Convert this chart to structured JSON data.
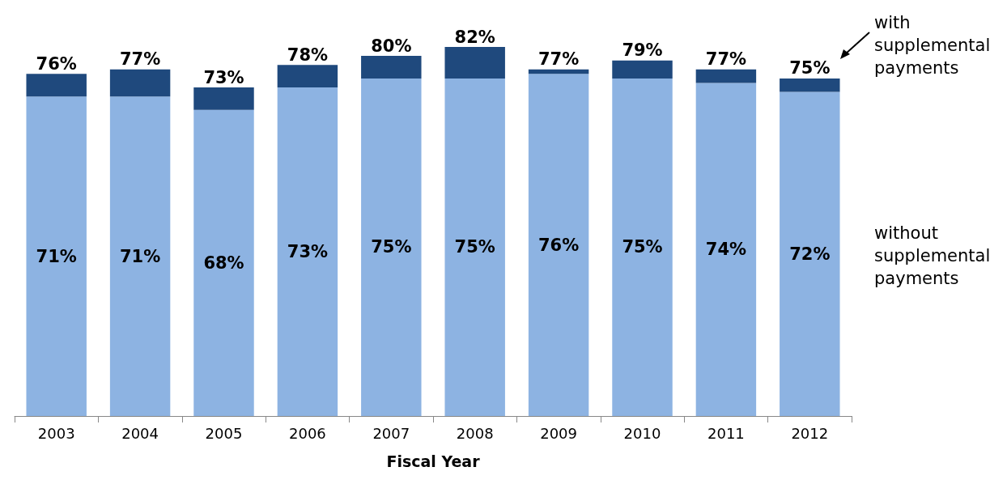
{
  "chart_data": {
    "type": "bar",
    "xlabel": "Fiscal Year",
    "stacked": true,
    "categories": [
      "2003",
      "2004",
      "2005",
      "2006",
      "2007",
      "2008",
      "2009",
      "2010",
      "2011",
      "2012"
    ],
    "series": [
      {
        "name": "without supplemental payments",
        "color": "#8db3e2",
        "values": [
          71,
          71,
          68,
          73,
          75,
          75,
          76,
          75,
          74,
          72
        ],
        "value_labels": [
          "71%",
          "71%",
          "68%",
          "73%",
          "75%",
          "75%",
          "76%",
          "75%",
          "74%",
          "72%"
        ]
      },
      {
        "name": "with supplemental payments",
        "color": "#1f497d",
        "values": [
          5,
          6,
          5,
          5,
          5,
          7,
          1,
          4,
          3,
          3
        ]
      }
    ],
    "totals": [
      "76%",
      "77%",
      "73%",
      "78%",
      "80%",
      "82%",
      "77%",
      "79%",
      "77%",
      "75%"
    ],
    "grid": false,
    "legend": false
  }
}
